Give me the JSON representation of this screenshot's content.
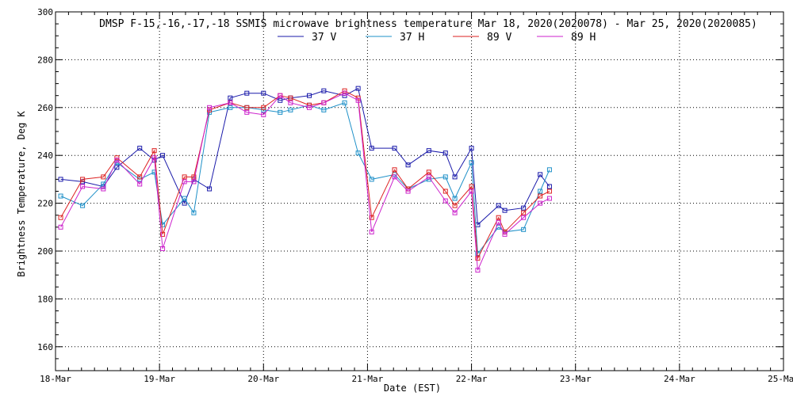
{
  "chart_data": {
    "type": "line",
    "title": "DMSP F-15,-16,-17,-18 SSMIS microwave brightness temperature Mar 18, 2020(2020078) - Mar 25, 2020(2020085)",
    "xlabel": "Date (EST)",
    "ylabel": "Brightness Temperature, Deg K",
    "xlim": [
      0,
      7
    ],
    "ylim": [
      150,
      300
    ],
    "x_ticks": [
      0,
      1,
      2,
      3,
      4,
      5,
      6,
      7
    ],
    "x_tick_labels": [
      "18-Mar",
      "19-Mar",
      "20-Mar",
      "21-Mar",
      "22-Mar",
      "23-Mar",
      "24-Mar",
      "25-Mar"
    ],
    "y_ticks": [
      160,
      180,
      200,
      220,
      240,
      260,
      280,
      300
    ],
    "y_tick_labels": [
      "160",
      "180",
      "200",
      "220",
      "240",
      "260",
      "280",
      "300"
    ],
    "x_units": "days since 18-Mar 00:00 EST",
    "grid": true,
    "legend_position": "top-center",
    "series": [
      {
        "name": "37 V",
        "color": "#1a1aaa",
        "x": [
          0.05,
          0.26,
          0.46,
          0.59,
          0.81,
          0.95,
          1.03,
          1.24,
          1.33,
          1.48,
          1.68,
          1.84,
          2.0,
          2.16,
          2.26,
          2.44,
          2.58,
          2.78,
          2.91,
          3.04,
          3.26,
          3.39,
          3.59,
          3.75,
          3.84,
          4.0,
          4.06,
          4.26,
          4.32,
          4.5,
          4.66,
          4.75
        ],
        "y": [
          230,
          229,
          227,
          235,
          243,
          238,
          240,
          220,
          230,
          226,
          264,
          266,
          266,
          263,
          264,
          265,
          267,
          265,
          268,
          243,
          243,
          236,
          242,
          241,
          231,
          243,
          211,
          219,
          217,
          218,
          232,
          227
        ]
      },
      {
        "name": "37 H",
        "color": "#1e90c8",
        "x": [
          0.05,
          0.26,
          0.46,
          0.59,
          0.81,
          0.95,
          1.03,
          1.24,
          1.33,
          1.48,
          1.68,
          1.84,
          2.0,
          2.16,
          2.26,
          2.44,
          2.58,
          2.78,
          2.91,
          3.04,
          3.26,
          3.39,
          3.59,
          3.75,
          3.84,
          4.0,
          4.06,
          4.26,
          4.32,
          4.5,
          4.66,
          4.75
        ],
        "y": [
          223,
          219,
          228,
          237,
          230,
          233,
          211,
          222,
          216,
          258,
          260,
          260,
          259,
          258,
          259,
          261,
          259,
          262,
          241,
          230,
          232,
          226,
          230,
          231,
          222,
          237,
          199,
          210,
          208,
          209,
          225,
          234
        ]
      },
      {
        "name": "89 V",
        "color": "#dd2222",
        "x": [
          0.05,
          0.26,
          0.46,
          0.59,
          0.81,
          0.95,
          1.03,
          1.24,
          1.33,
          1.48,
          1.68,
          1.84,
          2.0,
          2.16,
          2.26,
          2.44,
          2.58,
          2.78,
          2.91,
          3.04,
          3.26,
          3.39,
          3.59,
          3.75,
          3.84,
          4.0,
          4.06,
          4.26,
          4.32,
          4.5,
          4.66,
          4.75
        ],
        "y": [
          214,
          230,
          231,
          239,
          231,
          242,
          207,
          231,
          231,
          259,
          262,
          260,
          260,
          265,
          264,
          261,
          262,
          267,
          264,
          214,
          234,
          226,
          233,
          225,
          219,
          227,
          197,
          214,
          208,
          216,
          223,
          225
        ]
      },
      {
        "name": "89 H",
        "color": "#cc22cc",
        "x": [
          0.05,
          0.26,
          0.46,
          0.59,
          0.81,
          0.95,
          1.03,
          1.24,
          1.33,
          1.48,
          1.68,
          1.84,
          2.0,
          2.16,
          2.26,
          2.44,
          2.58,
          2.78,
          2.91,
          3.04,
          3.26,
          3.39,
          3.59,
          3.75,
          3.84,
          4.0,
          4.06,
          4.26,
          4.32,
          4.5,
          4.66,
          4.75
        ],
        "y": [
          210,
          227,
          226,
          238,
          228,
          239,
          201,
          229,
          229,
          260,
          262,
          258,
          257,
          265,
          262,
          260,
          262,
          266,
          263,
          208,
          231,
          225,
          231,
          221,
          216,
          225,
          192,
          212,
          207,
          214,
          220,
          222
        ]
      }
    ]
  }
}
